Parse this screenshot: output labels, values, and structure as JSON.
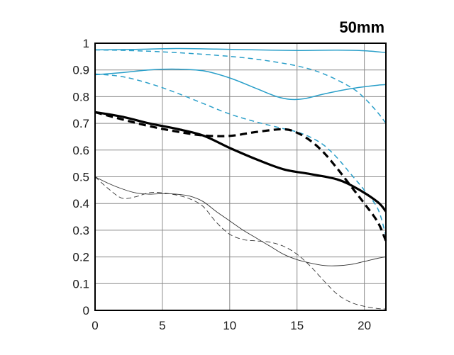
{
  "chart_data": {
    "type": "line",
    "title": "50mm",
    "xlabel": "",
    "ylabel": "",
    "xlim": [
      0,
      21.6
    ],
    "ylim": [
      0,
      1
    ],
    "x_ticks": [
      0,
      5,
      10,
      15,
      20
    ],
    "y_ticks": [
      0,
      0.1,
      0.2,
      0.3,
      0.4,
      0.5,
      0.6,
      0.7,
      0.8,
      0.9,
      1
    ],
    "y_tick_labels": [
      "0",
      "0.1",
      "0.2",
      "0.3",
      "0.4",
      "0.5",
      "0.6",
      "0.7",
      "0.8",
      "0.9",
      "1"
    ],
    "grid": true,
    "legend": "none",
    "series": [
      {
        "color": "#2a9fc9",
        "width": "thin",
        "style": "solid",
        "points": [
          [
            0,
            0.975
          ],
          [
            3,
            0.977
          ],
          [
            6,
            0.98
          ],
          [
            9,
            0.978
          ],
          [
            12,
            0.975
          ],
          [
            15,
            0.973
          ],
          [
            18,
            0.974
          ],
          [
            20,
            0.972
          ],
          [
            21.6,
            0.965
          ]
        ]
      },
      {
        "color": "#2a9fc9",
        "width": "thin",
        "style": "dashed",
        "points": [
          [
            0,
            0.975
          ],
          [
            3,
            0.972
          ],
          [
            6,
            0.965
          ],
          [
            9,
            0.955
          ],
          [
            12,
            0.94
          ],
          [
            15,
            0.915
          ],
          [
            17,
            0.885
          ],
          [
            19,
            0.835
          ],
          [
            20,
            0.795
          ],
          [
            21,
            0.74
          ],
          [
            21.6,
            0.7
          ]
        ]
      },
      {
        "color": "#2a9fc9",
        "width": "thin",
        "style": "solid",
        "points": [
          [
            0,
            0.882
          ],
          [
            2,
            0.89
          ],
          [
            4,
            0.9
          ],
          [
            6,
            0.903
          ],
          [
            8,
            0.897
          ],
          [
            10,
            0.87
          ],
          [
            12,
            0.83
          ],
          [
            13.5,
            0.8
          ],
          [
            14.5,
            0.79
          ],
          [
            15.5,
            0.792
          ],
          [
            17,
            0.81
          ],
          [
            19,
            0.83
          ],
          [
            21,
            0.843
          ],
          [
            21.6,
            0.845
          ]
        ]
      },
      {
        "color": "#2a9fc9",
        "width": "thin",
        "style": "dashed",
        "points": [
          [
            0,
            0.885
          ],
          [
            2,
            0.875
          ],
          [
            4,
            0.85
          ],
          [
            6,
            0.815
          ],
          [
            8,
            0.775
          ],
          [
            10,
            0.735
          ],
          [
            12,
            0.705
          ],
          [
            14,
            0.68
          ],
          [
            15,
            0.668
          ],
          [
            16,
            0.648
          ],
          [
            17,
            0.618
          ],
          [
            18,
            0.57
          ],
          [
            19,
            0.51
          ],
          [
            20,
            0.45
          ],
          [
            21,
            0.38
          ],
          [
            21.6,
            0.28
          ]
        ]
      },
      {
        "color": "#000000",
        "width": "thick",
        "style": "solid",
        "points": [
          [
            0,
            0.742
          ],
          [
            2,
            0.725
          ],
          [
            4,
            0.7
          ],
          [
            6,
            0.68
          ],
          [
            8,
            0.655
          ],
          [
            10,
            0.608
          ],
          [
            12,
            0.565
          ],
          [
            14,
            0.528
          ],
          [
            16,
            0.51
          ],
          [
            18,
            0.49
          ],
          [
            19.5,
            0.455
          ],
          [
            21,
            0.405
          ],
          [
            21.6,
            0.37
          ]
        ]
      },
      {
        "color": "#000000",
        "width": "thick",
        "style": "dashed",
        "points": [
          [
            0,
            0.742
          ],
          [
            2,
            0.715
          ],
          [
            4,
            0.69
          ],
          [
            6,
            0.67
          ],
          [
            8,
            0.655
          ],
          [
            10,
            0.653
          ],
          [
            12,
            0.668
          ],
          [
            14,
            0.678
          ],
          [
            15,
            0.665
          ],
          [
            16,
            0.635
          ],
          [
            17,
            0.59
          ],
          [
            18,
            0.53
          ],
          [
            19,
            0.465
          ],
          [
            20,
            0.4
          ],
          [
            21,
            0.33
          ],
          [
            21.6,
            0.26
          ]
        ]
      },
      {
        "color": "#333333",
        "width": "hair",
        "style": "solid",
        "points": [
          [
            0,
            0.5
          ],
          [
            1,
            0.475
          ],
          [
            2,
            0.455
          ],
          [
            3,
            0.44
          ],
          [
            4,
            0.435
          ],
          [
            5,
            0.437
          ],
          [
            6,
            0.435
          ],
          [
            7,
            0.428
          ],
          [
            8,
            0.408
          ],
          [
            9,
            0.37
          ],
          [
            10,
            0.335
          ],
          [
            11,
            0.3
          ],
          [
            12,
            0.27
          ],
          [
            13,
            0.24
          ],
          [
            14,
            0.21
          ],
          [
            15,
            0.19
          ],
          [
            16,
            0.177
          ],
          [
            17,
            0.168
          ],
          [
            18,
            0.167
          ],
          [
            19,
            0.172
          ],
          [
            20,
            0.183
          ],
          [
            21,
            0.195
          ],
          [
            21.6,
            0.2
          ]
        ]
      },
      {
        "color": "#333333",
        "width": "hair",
        "style": "dashed",
        "points": [
          [
            0,
            0.5
          ],
          [
            1,
            0.455
          ],
          [
            2,
            0.42
          ],
          [
            3,
            0.425
          ],
          [
            4,
            0.44
          ],
          [
            5,
            0.44
          ],
          [
            6,
            0.432
          ],
          [
            7,
            0.418
          ],
          [
            8,
            0.39
          ],
          [
            9,
            0.33
          ],
          [
            10,
            0.285
          ],
          [
            11,
            0.265
          ],
          [
            12,
            0.26
          ],
          [
            13,
            0.255
          ],
          [
            14,
            0.24
          ],
          [
            15,
            0.21
          ],
          [
            16,
            0.165
          ],
          [
            17,
            0.11
          ],
          [
            18,
            0.06
          ],
          [
            19,
            0.03
          ],
          [
            20,
            0.015
          ],
          [
            21,
            0.007
          ],
          [
            21.6,
            0.005
          ]
        ]
      }
    ]
  }
}
